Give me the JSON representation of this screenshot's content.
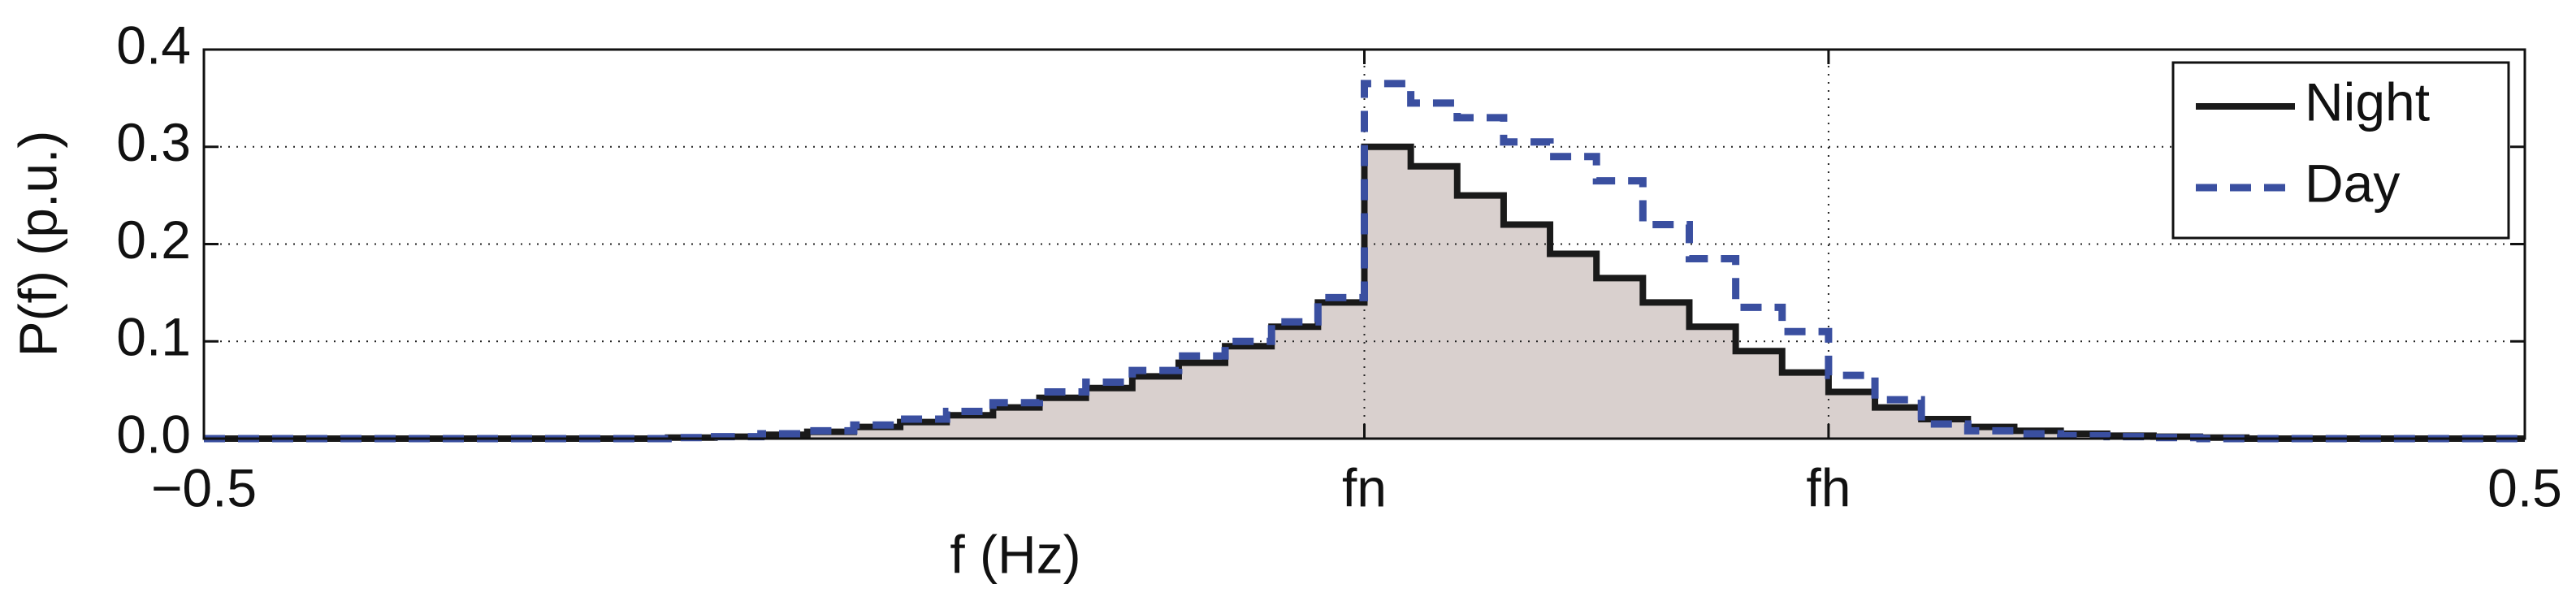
{
  "chart_data": {
    "type": "step",
    "xlabel": "f (Hz)",
    "ylabel": "P(f) (p.u.)",
    "x": [
      -0.5,
      -0.48,
      -0.46,
      -0.44,
      -0.42,
      -0.4,
      -0.38,
      -0.36,
      -0.34,
      -0.32,
      -0.3,
      -0.28,
      -0.26,
      -0.24,
      -0.22,
      -0.2,
      -0.18,
      -0.16,
      -0.14,
      -0.12,
      -0.1,
      -0.08,
      -0.06,
      -0.04,
      -0.02,
      0,
      0.02,
      0.04,
      0.06,
      0.08,
      0.1,
      0.12,
      0.14,
      0.16,
      0.18,
      0.2,
      0.22,
      0.24,
      0.26,
      0.28,
      0.3,
      0.32,
      0.34,
      0.36,
      0.38,
      0.4,
      0.42,
      0.44,
      0.46,
      0.48
    ],
    "series": [
      {
        "name": "Night",
        "color": "#1a1a1a",
        "fill": "#d9d0ce",
        "dash": false,
        "values": [
          0,
          0,
          0,
          0,
          0,
          0,
          0,
          0,
          0,
          0,
          0.001,
          0.002,
          0.004,
          0.007,
          0.012,
          0.017,
          0.024,
          0.032,
          0.042,
          0.052,
          0.064,
          0.078,
          0.095,
          0.115,
          0.14,
          0.3,
          0.28,
          0.25,
          0.22,
          0.19,
          0.165,
          0.14,
          0.115,
          0.09,
          0.068,
          0.048,
          0.032,
          0.02,
          0.012,
          0.008,
          0.005,
          0.003,
          0.002,
          0.001,
          0,
          0,
          0,
          0,
          0,
          0
        ]
      },
      {
        "name": "Day",
        "color": "#3a4fa0",
        "dash": true,
        "values": [
          0,
          0,
          0,
          0,
          0,
          0,
          0,
          0,
          0,
          0,
          0.001,
          0.002,
          0.005,
          0.008,
          0.014,
          0.02,
          0.028,
          0.037,
          0.048,
          0.058,
          0.07,
          0.085,
          0.1,
          0.12,
          0.145,
          0.365,
          0.345,
          0.33,
          0.305,
          0.29,
          0.265,
          0.22,
          0.185,
          0.135,
          0.11,
          0.065,
          0.04,
          0.015,
          0.008,
          0.005,
          0.003,
          0.002,
          0.001,
          0,
          0,
          0,
          0,
          0,
          0,
          0
        ]
      }
    ],
    "xlim": [
      -0.5,
      0.5
    ],
    "xticks": [
      {
        "value": -0.5,
        "label": "−0.5"
      },
      {
        "value": 0,
        "label": "fn"
      },
      {
        "value": 0.2,
        "label": "fh"
      },
      0.5
    ],
    "ylim": [
      0,
      0.4
    ],
    "yticks": [
      {
        "value": 0,
        "label": "0.0"
      },
      0.1,
      0.2,
      0.3,
      0.4
    ],
    "grid": true,
    "legend": "upper right"
  }
}
